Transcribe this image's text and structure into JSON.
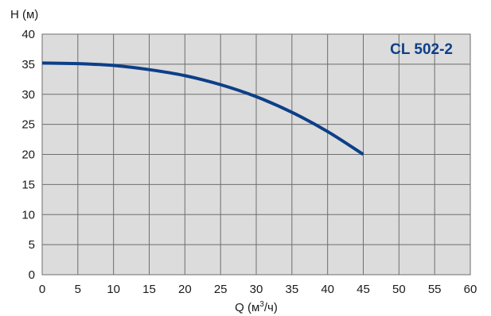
{
  "chart_data": {
    "type": "line",
    "title": "CL 502-2",
    "xlabel_main": "Q (м",
    "xlabel_sup": "3",
    "xlabel_tail": "/ч)",
    "ylabel": "H (м)",
    "xlim": [
      0,
      60
    ],
    "ylim": [
      0,
      40
    ],
    "x_ticks": [
      0,
      5,
      10,
      15,
      20,
      25,
      30,
      35,
      40,
      45,
      50,
      55,
      60
    ],
    "y_ticks": [
      0,
      5,
      10,
      15,
      20,
      25,
      30,
      35,
      40
    ],
    "grid": true,
    "series": [
      {
        "x": [
          0,
          5,
          7,
          10,
          15,
          20,
          25,
          30,
          35,
          40,
          45
        ],
        "y": [
          35.2,
          35.1,
          35.0,
          34.8,
          34.1,
          33.1,
          31.6,
          29.6,
          27.0,
          23.8,
          20.0
        ]
      }
    ]
  },
  "colors": {
    "plot_bg": "#dcdcdc",
    "grid": "#6e6e6e",
    "curve": "#0d3f88",
    "title": "#0d3f88"
  }
}
